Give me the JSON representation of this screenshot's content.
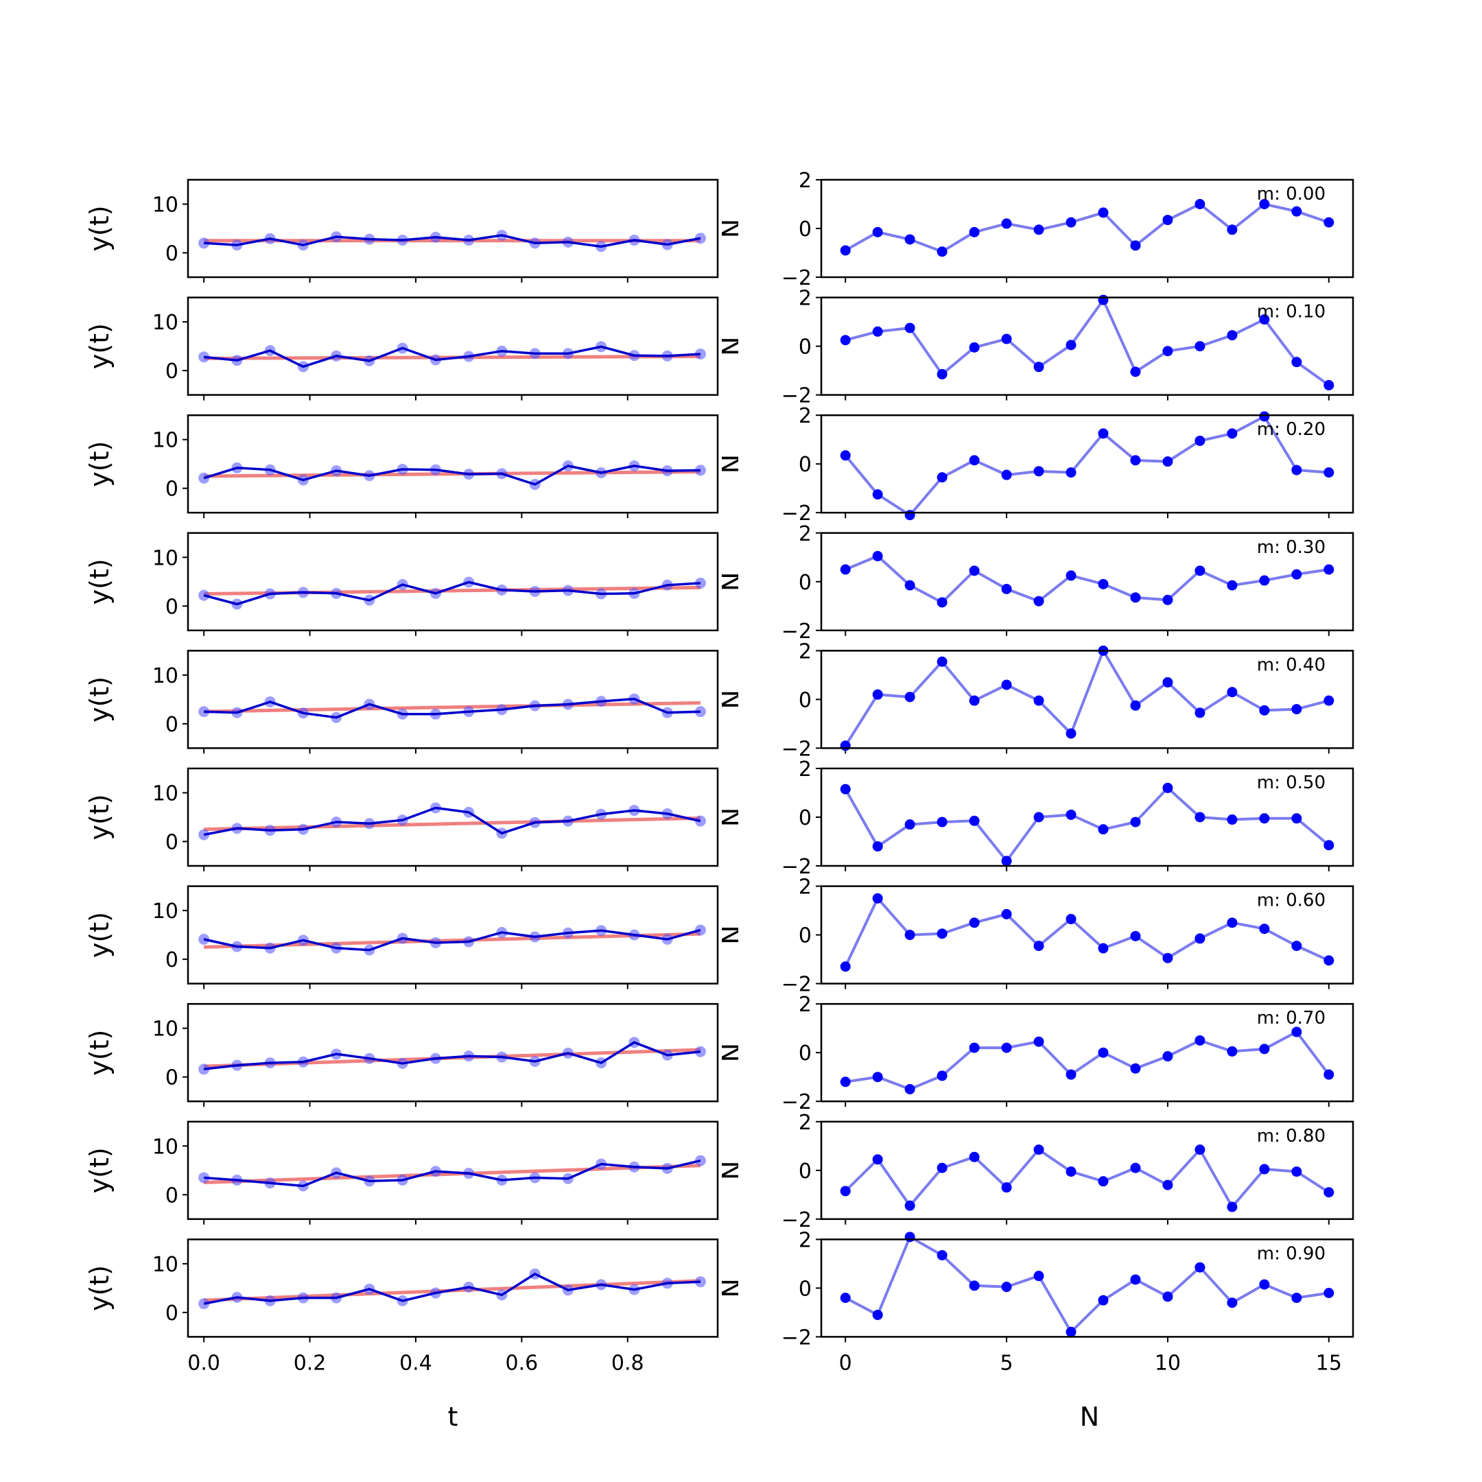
{
  "chart_data": {
    "type": "line",
    "layout": "10 rows x 2 columns",
    "left": {
      "xlabel": "t",
      "ylabel": "y(t)",
      "xlim": [
        -0.03,
        0.97
      ],
      "ylim": [
        -5,
        15
      ],
      "xticks": [
        0.0,
        0.2,
        0.4,
        0.6,
        0.8
      ],
      "xtick_labels": [
        "0.0",
        "0.2",
        "0.4",
        "0.6",
        "0.8"
      ],
      "yticks": [
        0,
        10
      ],
      "ytick_labels": [
        "0",
        "10"
      ],
      "x": [
        0.0,
        0.0625,
        0.125,
        0.1875,
        0.25,
        0.3125,
        0.375,
        0.4375,
        0.5,
        0.5625,
        0.625,
        0.6875,
        0.75,
        0.8125,
        0.875,
        0.9375
      ],
      "observed_color": "#0000cc",
      "trend_color": "#f08080",
      "panels": [
        {
          "observed": [
            2.0,
            1.6,
            2.9,
            1.6,
            3.3,
            2.8,
            2.6,
            3.2,
            2.6,
            3.6,
            2.0,
            2.2,
            1.3,
            2.6,
            1.7,
            3.0
          ],
          "trend": [
            2.5,
            2.5
          ]
        },
        {
          "observed": [
            2.8,
            2.1,
            4.1,
            0.8,
            3.0,
            2.0,
            4.6,
            2.2,
            2.9,
            4.0,
            3.5,
            3.5,
            4.9,
            3.1,
            3.0,
            3.4
          ],
          "trend": [
            2.5,
            2.9
          ]
        },
        {
          "observed": [
            2.1,
            4.2,
            3.8,
            1.7,
            3.6,
            2.6,
            3.9,
            3.8,
            2.9,
            3.0,
            0.8,
            4.6,
            3.2,
            4.6,
            3.6,
            3.7
          ],
          "trend": [
            2.5,
            3.4
          ]
        },
        {
          "observed": [
            2.2,
            0.4,
            2.5,
            2.8,
            2.6,
            1.2,
            4.4,
            2.6,
            4.9,
            3.3,
            3.0,
            3.2,
            2.5,
            2.6,
            4.3,
            4.7
          ],
          "trend": [
            2.5,
            3.8
          ]
        },
        {
          "observed": [
            2.5,
            2.3,
            4.5,
            2.2,
            1.3,
            4.0,
            2.0,
            2.0,
            2.5,
            2.9,
            3.7,
            4.0,
            4.6,
            5.1,
            2.3,
            2.5
          ],
          "trend": [
            2.5,
            4.3
          ]
        },
        {
          "observed": [
            1.4,
            2.7,
            2.3,
            2.5,
            4.0,
            3.7,
            4.4,
            6.9,
            6.0,
            1.7,
            3.9,
            4.2,
            5.6,
            6.4,
            5.7,
            4.2
          ],
          "trend": [
            2.5,
            4.8
          ]
        },
        {
          "observed": [
            4.1,
            2.6,
            2.3,
            3.9,
            2.3,
            1.9,
            4.3,
            3.4,
            3.6,
            5.5,
            4.6,
            5.4,
            5.9,
            5.0,
            4.1,
            6.0
          ],
          "trend": [
            2.5,
            5.2
          ]
        },
        {
          "observed": [
            1.6,
            2.4,
            2.9,
            3.1,
            4.7,
            3.8,
            2.8,
            3.8,
            4.3,
            4.1,
            3.2,
            4.9,
            2.9,
            7.1,
            4.5,
            5.2
          ],
          "trend": [
            2.2,
            5.6
          ]
        },
        {
          "observed": [
            3.5,
            3.0,
            2.4,
            1.8,
            4.5,
            2.8,
            3.0,
            4.8,
            4.4,
            3.0,
            3.5,
            3.3,
            6.3,
            5.7,
            5.4,
            7.0
          ],
          "trend": [
            2.5,
            6.0
          ]
        },
        {
          "observed": [
            1.8,
            3.1,
            2.4,
            3.0,
            3.0,
            4.8,
            2.4,
            4.0,
            5.2,
            3.6,
            7.9,
            4.6,
            5.7,
            4.7,
            6.0,
            6.3
          ],
          "trend": [
            2.5,
            6.5
          ]
        }
      ]
    },
    "right": {
      "xlabel": "N",
      "ylabel": "N",
      "xlim": [
        -0.75,
        15.75
      ],
      "ylim": [
        -2,
        2
      ],
      "xticks": [
        0,
        5,
        10,
        15
      ],
      "xtick_labels": [
        "0",
        "5",
        "10",
        "15"
      ],
      "yticks": [
        -2,
        0,
        2
      ],
      "ytick_labels": [
        "−2",
        "0",
        "2"
      ],
      "x": [
        0,
        1,
        2,
        3,
        4,
        5,
        6,
        7,
        8,
        9,
        10,
        11,
        12,
        13,
        14,
        15
      ],
      "line_color": "#7b7bf0",
      "marker_color": "#0000ff",
      "panels": [
        {
          "label": "m: 0.00",
          "values": [
            -0.9,
            -0.15,
            -0.45,
            -0.95,
            -0.15,
            0.2,
            -0.05,
            0.25,
            0.65,
            -0.7,
            0.35,
            1.0,
            -0.05,
            1.0,
            0.7,
            0.25
          ]
        },
        {
          "label": "m: 0.10",
          "values": [
            0.25,
            0.6,
            0.75,
            -1.15,
            -0.05,
            0.3,
            -0.85,
            0.05,
            1.9,
            -1.05,
            -0.2,
            0.0,
            0.45,
            1.1,
            -0.65,
            -1.6
          ]
        },
        {
          "label": "m: 0.20",
          "values": [
            0.35,
            -1.25,
            -2.1,
            -0.55,
            0.15,
            -0.45,
            -0.3,
            -0.35,
            1.25,
            0.15,
            0.1,
            0.95,
            1.25,
            1.95,
            -0.25,
            -0.35
          ]
        },
        {
          "label": "m: 0.30",
          "values": [
            0.5,
            1.05,
            -0.15,
            -0.85,
            0.45,
            -0.3,
            -0.8,
            0.25,
            -0.1,
            -0.65,
            -0.75,
            0.45,
            -0.15,
            0.05,
            0.3,
            0.5
          ]
        },
        {
          "label": "m: 0.40",
          "values": [
            -1.9,
            0.2,
            0.1,
            1.55,
            -0.05,
            0.6,
            -0.05,
            -1.4,
            2.0,
            -0.25,
            0.7,
            -0.55,
            0.3,
            -0.45,
            -0.4,
            -0.05
          ]
        },
        {
          "label": "m: 0.50",
          "values": [
            1.15,
            -1.2,
            -0.3,
            -0.2,
            -0.15,
            -1.8,
            0.0,
            0.1,
            -0.5,
            -0.2,
            1.2,
            0.0,
            -0.1,
            -0.05,
            -0.05,
            -1.15
          ]
        },
        {
          "label": "m: 0.60",
          "values": [
            -1.3,
            1.5,
            0.0,
            0.05,
            0.5,
            0.85,
            -0.45,
            0.65,
            -0.55,
            -0.05,
            -0.95,
            -0.15,
            0.5,
            0.25,
            -0.45,
            -1.05
          ]
        },
        {
          "label": "m: 0.70",
          "values": [
            -1.2,
            -1.0,
            -1.5,
            -0.95,
            0.2,
            0.2,
            0.45,
            -0.9,
            0.0,
            -0.65,
            -0.15,
            0.5,
            0.05,
            0.15,
            0.85,
            -0.9
          ]
        },
        {
          "label": "m: 0.80",
          "values": [
            -0.85,
            0.45,
            -1.45,
            0.1,
            0.55,
            -0.7,
            0.85,
            -0.05,
            -0.45,
            0.1,
            -0.6,
            0.85,
            -1.5,
            0.05,
            -0.05,
            -0.9
          ]
        },
        {
          "label": "m: 0.90",
          "values": [
            -0.4,
            -1.1,
            2.1,
            1.35,
            0.1,
            0.05,
            0.5,
            -1.8,
            -0.5,
            0.35,
            -0.35,
            0.85,
            -0.6,
            0.15,
            -0.4,
            -0.2
          ]
        }
      ]
    }
  }
}
